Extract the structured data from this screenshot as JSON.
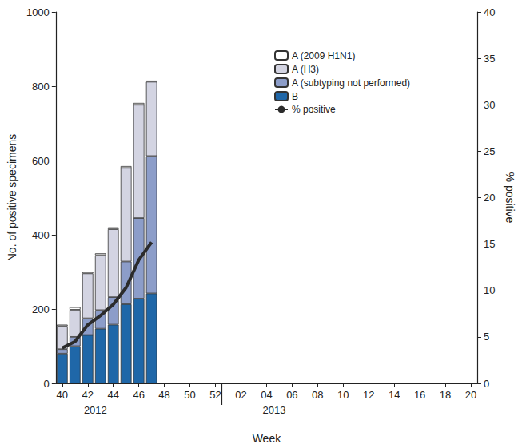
{
  "chart_data": {
    "type": "bar",
    "stacked": true,
    "grid": false,
    "legend": "upper right",
    "x_label": "Week",
    "y_label": "No. of positive specimens",
    "y2_label": "% positive",
    "annotations": [
      "2012",
      "2013"
    ],
    "categories": [
      "40",
      null,
      "42",
      null,
      "44",
      null,
      "46",
      null,
      "48",
      null,
      "50",
      null,
      "52",
      null,
      "02",
      null,
      "04",
      null,
      "06",
      null,
      "08",
      null,
      "10",
      null,
      "12",
      null,
      "14",
      null,
      "16",
      null,
      "18",
      null,
      "20"
    ],
    "ylim": [
      0,
      1000
    ],
    "yticks": [
      0,
      200,
      400,
      600,
      800,
      1000
    ],
    "y2lim": [
      0,
      40
    ],
    "y2ticks": [
      0,
      5,
      10,
      15,
      20,
      25,
      30,
      35,
      40
    ],
    "series": [
      {
        "name": "A (2009 H1N1)",
        "type": "bar",
        "color": "#ffffff",
        "values": [
          4,
          7,
          4,
          5,
          5,
          5,
          5,
          3,
          null,
          null,
          null,
          null,
          null,
          null,
          null,
          null,
          null,
          null,
          null,
          null,
          null,
          null,
          null,
          null,
          null,
          null,
          null,
          null,
          null,
          null,
          null,
          null,
          null
        ]
      },
      {
        "name": "A (H3)",
        "type": "bar",
        "color": "#d3d4e2",
        "values": [
          62,
          73,
          121,
          148,
          183,
          252,
          305,
          200,
          null,
          null,
          null,
          null,
          null,
          null,
          null,
          null,
          null,
          null,
          null,
          null,
          null,
          null,
          null,
          null,
          null,
          null,
          null,
          null,
          null,
          null,
          null,
          null,
          null
        ]
      },
      {
        "name": "A (subtyping not performed)",
        "type": "bar",
        "color": "#8c9dc9",
        "values": [
          12,
          25,
          45,
          50,
          74,
          115,
          217,
          370,
          null,
          null,
          null,
          null,
          null,
          null,
          null,
          null,
          null,
          null,
          null,
          null,
          null,
          null,
          null,
          null,
          null,
          null,
          null,
          null,
          null,
          null,
          null,
          null,
          null
        ]
      },
      {
        "name": "B",
        "type": "bar",
        "color": "#1f67a8",
        "values": [
          80,
          100,
          130,
          147,
          158,
          213,
          228,
          242,
          null,
          null,
          null,
          null,
          null,
          null,
          null,
          null,
          null,
          null,
          null,
          null,
          null,
          null,
          null,
          null,
          null,
          null,
          null,
          null,
          null,
          null,
          null,
          null,
          null
        ]
      },
      {
        "name": "% positive",
        "type": "line",
        "axis": "y2",
        "color": "#2b2b2b",
        "line_style": "solid",
        "values": [
          3.8,
          4.5,
          6.3,
          7.3,
          8.5,
          10.3,
          13.3,
          15.2,
          null,
          null,
          null,
          null,
          null,
          null,
          null,
          null,
          null,
          null,
          null,
          null,
          null,
          null,
          null,
          null,
          null,
          null,
          null,
          null,
          null,
          null,
          null,
          null,
          null
        ]
      }
    ]
  }
}
